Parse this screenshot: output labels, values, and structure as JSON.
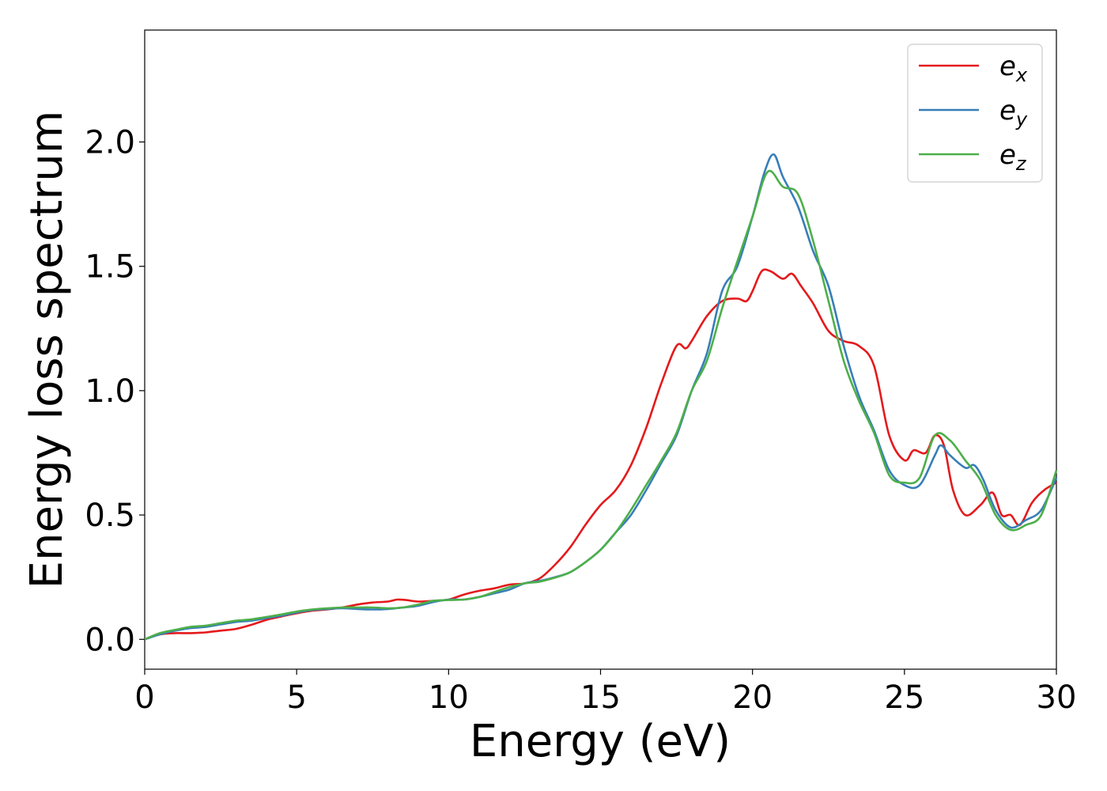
{
  "chart_data": {
    "type": "line",
    "title": "",
    "xlabel": "Energy (eV)",
    "ylabel": "Energy loss spectrum",
    "xlim": [
      0,
      30
    ],
    "ylim": [
      -0.12,
      2.45
    ],
    "xticks": [
      0,
      5,
      10,
      15,
      20,
      25,
      30
    ],
    "xtick_labels": [
      "0",
      "5",
      "10",
      "15",
      "20",
      "25",
      "30"
    ],
    "yticks": [
      0.0,
      0.5,
      1.0,
      1.5,
      2.0
    ],
    "ytick_labels": [
      "0.0",
      "0.5",
      "1.0",
      "1.5",
      "2.0"
    ],
    "grid": false,
    "legend_position": "top-right",
    "series": [
      {
        "name": "e",
        "subscript": "x",
        "color": "#e41a1c",
        "points": [
          [
            0,
            0
          ],
          [
            0.5,
            0.02
          ],
          [
            1,
            0.025
          ],
          [
            1.5,
            0.025
          ],
          [
            2,
            0.028
          ],
          [
            2.5,
            0.035
          ],
          [
            3,
            0.042
          ],
          [
            3.5,
            0.058
          ],
          [
            4,
            0.078
          ],
          [
            4.5,
            0.092
          ],
          [
            5,
            0.105
          ],
          [
            5.5,
            0.115
          ],
          [
            6,
            0.12
          ],
          [
            6.5,
            0.128
          ],
          [
            7,
            0.14
          ],
          [
            7.5,
            0.148
          ],
          [
            8,
            0.152
          ],
          [
            8.3,
            0.16
          ],
          [
            8.6,
            0.158
          ],
          [
            9,
            0.152
          ],
          [
            9.5,
            0.155
          ],
          [
            10,
            0.16
          ],
          [
            10.5,
            0.18
          ],
          [
            11,
            0.195
          ],
          [
            11.5,
            0.205
          ],
          [
            12,
            0.22
          ],
          [
            12.5,
            0.225
          ],
          [
            13,
            0.245
          ],
          [
            13.5,
            0.3
          ],
          [
            14,
            0.37
          ],
          [
            14.5,
            0.46
          ],
          [
            15,
            0.54
          ],
          [
            15.5,
            0.6
          ],
          [
            16,
            0.7
          ],
          [
            16.5,
            0.85
          ],
          [
            17,
            1.03
          ],
          [
            17.5,
            1.18
          ],
          [
            17.8,
            1.17
          ],
          [
            18,
            1.2
          ],
          [
            18.5,
            1.3
          ],
          [
            19,
            1.36
          ],
          [
            19.5,
            1.37
          ],
          [
            19.8,
            1.36
          ],
          [
            20,
            1.4
          ],
          [
            20.3,
            1.48
          ],
          [
            20.6,
            1.48
          ],
          [
            21,
            1.45
          ],
          [
            21.3,
            1.47
          ],
          [
            21.6,
            1.42
          ],
          [
            22,
            1.35
          ],
          [
            22.5,
            1.24
          ],
          [
            23,
            1.2
          ],
          [
            23.5,
            1.18
          ],
          [
            24,
            1.1
          ],
          [
            24.5,
            0.82
          ],
          [
            25,
            0.72
          ],
          [
            25.3,
            0.76
          ],
          [
            25.7,
            0.75
          ],
          [
            26,
            0.82
          ],
          [
            26.3,
            0.78
          ],
          [
            26.6,
            0.6
          ],
          [
            27,
            0.5
          ],
          [
            27.5,
            0.54
          ],
          [
            27.9,
            0.59
          ],
          [
            28.2,
            0.5
          ],
          [
            28.5,
            0.5
          ],
          [
            28.8,
            0.46
          ],
          [
            29.2,
            0.55
          ],
          [
            29.6,
            0.6
          ],
          [
            30,
            0.63
          ]
        ]
      },
      {
        "name": "e",
        "subscript": "y",
        "color": "#377eb8",
        "points": [
          [
            0,
            0
          ],
          [
            0.5,
            0.02
          ],
          [
            1,
            0.035
          ],
          [
            1.5,
            0.045
          ],
          [
            2,
            0.05
          ],
          [
            2.5,
            0.06
          ],
          [
            3,
            0.07
          ],
          [
            3.5,
            0.075
          ],
          [
            4,
            0.085
          ],
          [
            4.5,
            0.095
          ],
          [
            5,
            0.108
          ],
          [
            5.5,
            0.118
          ],
          [
            6,
            0.122
          ],
          [
            6.5,
            0.125
          ],
          [
            7,
            0.122
          ],
          [
            7.5,
            0.12
          ],
          [
            8,
            0.122
          ],
          [
            8.5,
            0.128
          ],
          [
            9,
            0.135
          ],
          [
            9.5,
            0.15
          ],
          [
            10,
            0.16
          ],
          [
            10.5,
            0.16
          ],
          [
            11,
            0.17
          ],
          [
            11.5,
            0.185
          ],
          [
            12,
            0.2
          ],
          [
            12.5,
            0.225
          ],
          [
            13,
            0.235
          ],
          [
            13.5,
            0.25
          ],
          [
            14,
            0.27
          ],
          [
            14.5,
            0.31
          ],
          [
            15,
            0.36
          ],
          [
            15.5,
            0.43
          ],
          [
            16,
            0.5
          ],
          [
            16.5,
            0.6
          ],
          [
            17,
            0.71
          ],
          [
            17.5,
            0.82
          ],
          [
            18,
            1.0
          ],
          [
            18.5,
            1.15
          ],
          [
            19,
            1.4
          ],
          [
            19.5,
            1.5
          ],
          [
            20,
            1.7
          ],
          [
            20.4,
            1.88
          ],
          [
            20.7,
            1.95
          ],
          [
            21,
            1.86
          ],
          [
            21.5,
            1.74
          ],
          [
            22,
            1.56
          ],
          [
            22.5,
            1.42
          ],
          [
            23,
            1.18
          ],
          [
            23.5,
            0.98
          ],
          [
            24,
            0.84
          ],
          [
            24.5,
            0.68
          ],
          [
            25,
            0.62
          ],
          [
            25.5,
            0.62
          ],
          [
            26,
            0.74
          ],
          [
            26.2,
            0.78
          ],
          [
            26.5,
            0.74
          ],
          [
            27,
            0.69
          ],
          [
            27.3,
            0.7
          ],
          [
            27.6,
            0.64
          ],
          [
            28,
            0.52
          ],
          [
            28.5,
            0.45
          ],
          [
            29,
            0.48
          ],
          [
            29.5,
            0.52
          ],
          [
            30,
            0.65
          ]
        ]
      },
      {
        "name": "e",
        "subscript": "z",
        "color": "#4daf4a",
        "points": [
          [
            0,
            0
          ],
          [
            0.5,
            0.025
          ],
          [
            1,
            0.038
          ],
          [
            1.5,
            0.05
          ],
          [
            2,
            0.055
          ],
          [
            2.5,
            0.065
          ],
          [
            3,
            0.075
          ],
          [
            3.5,
            0.08
          ],
          [
            4,
            0.09
          ],
          [
            4.5,
            0.1
          ],
          [
            5,
            0.112
          ],
          [
            5.5,
            0.12
          ],
          [
            6,
            0.125
          ],
          [
            6.5,
            0.128
          ],
          [
            7,
            0.128
          ],
          [
            7.5,
            0.128
          ],
          [
            8,
            0.125
          ],
          [
            8.5,
            0.128
          ],
          [
            9,
            0.14
          ],
          [
            9.5,
            0.155
          ],
          [
            10,
            0.158
          ],
          [
            10.5,
            0.16
          ],
          [
            11,
            0.17
          ],
          [
            11.5,
            0.19
          ],
          [
            12,
            0.21
          ],
          [
            12.5,
            0.225
          ],
          [
            13,
            0.232
          ],
          [
            13.5,
            0.248
          ],
          [
            14,
            0.27
          ],
          [
            14.5,
            0.31
          ],
          [
            15,
            0.36
          ],
          [
            15.5,
            0.43
          ],
          [
            16,
            0.52
          ],
          [
            16.5,
            0.62
          ],
          [
            17,
            0.72
          ],
          [
            17.5,
            0.83
          ],
          [
            18,
            1.0
          ],
          [
            18.5,
            1.12
          ],
          [
            19,
            1.33
          ],
          [
            19.5,
            1.52
          ],
          [
            20,
            1.7
          ],
          [
            20.5,
            1.88
          ],
          [
            21,
            1.82
          ],
          [
            21.5,
            1.79
          ],
          [
            22,
            1.6
          ],
          [
            22.5,
            1.36
          ],
          [
            23,
            1.12
          ],
          [
            23.5,
            0.96
          ],
          [
            24,
            0.83
          ],
          [
            24.5,
            0.66
          ],
          [
            25,
            0.63
          ],
          [
            25.5,
            0.65
          ],
          [
            26,
            0.82
          ],
          [
            26.5,
            0.8
          ],
          [
            27,
            0.72
          ],
          [
            27.5,
            0.64
          ],
          [
            28,
            0.5
          ],
          [
            28.5,
            0.44
          ],
          [
            29,
            0.46
          ],
          [
            29.5,
            0.5
          ],
          [
            30,
            0.68
          ]
        ]
      }
    ]
  }
}
